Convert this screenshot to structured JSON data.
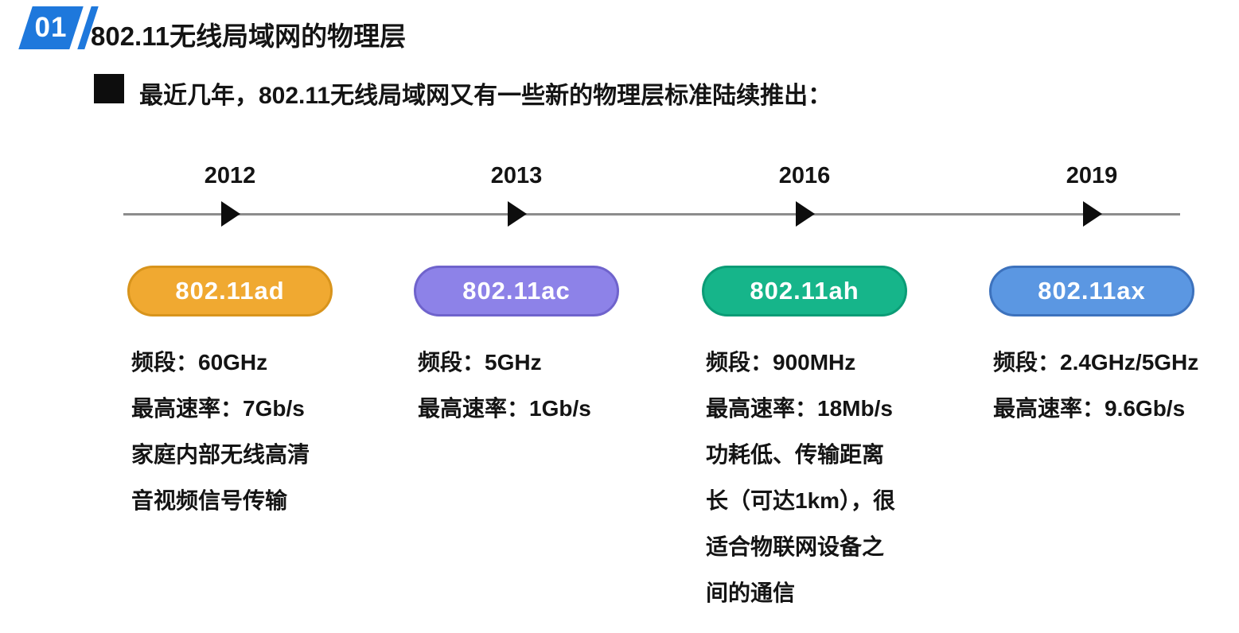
{
  "header": {
    "number": "01",
    "title": "802.11无线局域网的物理层",
    "badge_color": "#1e78dc"
  },
  "intro": {
    "bullet_text": "最近几年，802.11无线局域网又有一些新的物理层标准陆续推出："
  },
  "timeline": {
    "standards": [
      {
        "year": "2012",
        "name": "802.11ad",
        "pill_color": "#f0a931",
        "pill_border": "#d8941c",
        "details": [
          "频段：60GHz",
          "最高速率：7Gb/s",
          "家庭内部无线高清",
          "音视频信号传输"
        ]
      },
      {
        "year": "2013",
        "name": "802.11ac",
        "pill_color": "#8d82e8",
        "pill_border": "#6f63cc",
        "details": [
          "频段：5GHz",
          "最高速率：1Gb/s"
        ]
      },
      {
        "year": "2016",
        "name": "802.11ah",
        "pill_color": "#16b58a",
        "pill_border": "#0b9c76",
        "details": [
          "频段：900MHz",
          "最高速率：18Mb/s",
          "功耗低、传输距离",
          "长（可达1km），很",
          "适合物联网设备之",
          "间的通信"
        ]
      },
      {
        "year": "2019",
        "name": "802.11ax",
        "pill_color": "#5b97e2",
        "pill_border": "#3d72bd",
        "details": [
          "频段：2.4GHz/5GHz",
          "最高速率：9.6Gb/s"
        ]
      }
    ]
  }
}
